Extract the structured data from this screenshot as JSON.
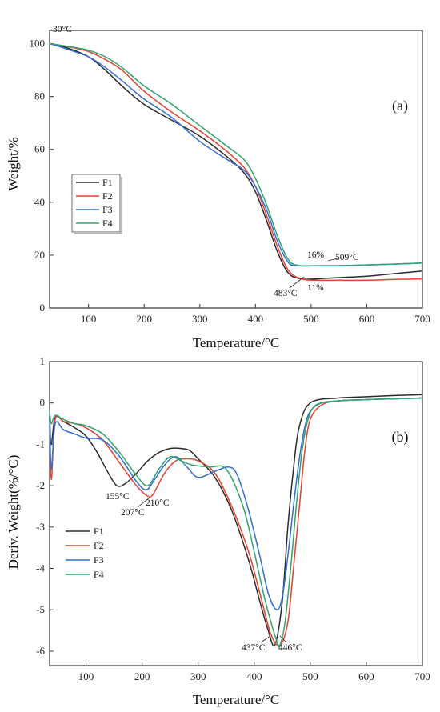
{
  "colors": {
    "F1": "#2b2b2b",
    "F2": "#e8402f",
    "F3": "#2f6fd6",
    "F4": "#2fa56b",
    "axis": "#333333"
  },
  "chart_data": [
    {
      "type": "line",
      "panel_label": "(a)",
      "xlabel": "Temperature/°C",
      "ylabel": "Weight/%",
      "xlim": [
        30,
        700
      ],
      "ylim": [
        0,
        105
      ],
      "xticks": [
        "100",
        "200",
        "300",
        "400",
        "500",
        "600",
        "700"
      ],
      "xtick_values": [
        100,
        200,
        300,
        400,
        500,
        600,
        700
      ],
      "yticks": [
        "0",
        "20",
        "40",
        "60",
        "80",
        "100"
      ],
      "ytick_values": [
        0,
        20,
        40,
        60,
        80,
        100
      ],
      "legend_position": "middle-left",
      "series": [
        {
          "name": "F1",
          "x": [
            30,
            60,
            100,
            130,
            160,
            200,
            250,
            300,
            350,
            380,
            400,
            420,
            440,
            460,
            483,
            510,
            550,
            600,
            650,
            700
          ],
          "y": [
            100,
            98.5,
            95,
            90,
            84,
            77,
            71,
            65,
            57,
            51,
            44,
            33,
            21,
            13,
            11,
            11,
            11.5,
            12,
            13,
            14
          ]
        },
        {
          "name": "F2",
          "x": [
            30,
            60,
            100,
            130,
            160,
            200,
            250,
            300,
            350,
            380,
            400,
            420,
            440,
            460,
            483,
            510,
            550,
            600,
            650,
            700
          ],
          "y": [
            100,
            99,
            97,
            94,
            90,
            82,
            74,
            67,
            59,
            53,
            46,
            35,
            23,
            14,
            11,
            10.5,
            10.5,
            10.5,
            10.8,
            11
          ]
        },
        {
          "name": "F3",
          "x": [
            30,
            60,
            100,
            130,
            160,
            200,
            250,
            300,
            350,
            380,
            400,
            420,
            440,
            460,
            480,
            509,
            550,
            600,
            650,
            700
          ],
          "y": [
            100,
            98,
            95,
            91,
            86,
            79,
            72,
            63,
            56,
            52,
            46,
            37,
            25,
            17,
            16,
            16,
            16,
            16.3,
            16.6,
            17
          ]
        },
        {
          "name": "F4",
          "x": [
            30,
            60,
            100,
            130,
            160,
            200,
            250,
            300,
            350,
            380,
            400,
            420,
            440,
            460,
            480,
            509,
            550,
            600,
            650,
            700
          ],
          "y": [
            100,
            99,
            97.5,
            95,
            91,
            84,
            77,
            69,
            61,
            56,
            49,
            39,
            27,
            18,
            16,
            16,
            16,
            16.3,
            16.6,
            17
          ]
        }
      ],
      "annotations": [
        "30°C",
        "16%",
        "509°C",
        "483°C",
        "11%"
      ]
    },
    {
      "type": "line",
      "panel_label": "(b)",
      "xlabel": "Temperature/°C",
      "ylabel": "Deriv. Weight(%/°C)",
      "xlim": [
        35,
        700
      ],
      "ylim": [
        -6.35,
        1
      ],
      "xticks": [
        "100",
        "200",
        "300",
        "400",
        "500",
        "600",
        "700"
      ],
      "xtick_values": [
        100,
        200,
        300,
        400,
        500,
        600,
        700
      ],
      "yticks": [
        "-6",
        "-5",
        "-4",
        "-3",
        "-2",
        "-1",
        "0",
        "1"
      ],
      "ytick_values": [
        -6,
        -5,
        -4,
        -3,
        -2,
        -1,
        0,
        1
      ],
      "legend_position": "bottom-left",
      "series": [
        {
          "name": "F1",
          "x": [
            35,
            38,
            45,
            60,
            80,
            100,
            120,
            140,
            155,
            170,
            190,
            210,
            230,
            250,
            270,
            285,
            300,
            330,
            360,
            390,
            410,
            425,
            437,
            450,
            460,
            470,
            480,
            500,
            550,
            600,
            650,
            700
          ],
          "y": [
            -0.35,
            -1.0,
            -0.35,
            -0.45,
            -0.6,
            -0.8,
            -1.2,
            -1.7,
            -2.0,
            -1.95,
            -1.7,
            -1.4,
            -1.2,
            -1.1,
            -1.1,
            -1.15,
            -1.35,
            -1.8,
            -2.6,
            -3.8,
            -4.8,
            -5.5,
            -5.85,
            -4.8,
            -3.0,
            -1.6,
            -0.6,
            0.0,
            0.12,
            0.15,
            0.18,
            0.2
          ]
        },
        {
          "name": "F2",
          "x": [
            35,
            38,
            45,
            60,
            80,
            100,
            130,
            160,
            190,
            210,
            220,
            240,
            260,
            280,
            300,
            330,
            360,
            390,
            410,
            430,
            446,
            460,
            470,
            480,
            490,
            500,
            520,
            550,
            600,
            650,
            700
          ],
          "y": [
            -0.35,
            -1.85,
            -0.4,
            -0.45,
            -0.5,
            -0.6,
            -0.9,
            -1.45,
            -2.0,
            -2.25,
            -2.2,
            -1.7,
            -1.4,
            -1.35,
            -1.4,
            -1.7,
            -2.5,
            -3.6,
            -4.6,
            -5.6,
            -5.85,
            -5.3,
            -4.0,
            -2.6,
            -1.2,
            -0.4,
            -0.05,
            0.05,
            0.08,
            0.1,
            0.12
          ]
        },
        {
          "name": "F3",
          "x": [
            35,
            38,
            45,
            60,
            80,
            100,
            130,
            160,
            190,
            207,
            220,
            240,
            260,
            280,
            300,
            330,
            355,
            370,
            390,
            410,
            425,
            440,
            450,
            460,
            470,
            480,
            490,
            500,
            520,
            550,
            600,
            650,
            700
          ],
          "y": [
            -0.3,
            -1.6,
            -0.5,
            -0.65,
            -0.75,
            -0.85,
            -0.9,
            -1.3,
            -1.9,
            -2.1,
            -1.9,
            -1.5,
            -1.3,
            -1.55,
            -1.8,
            -1.65,
            -1.55,
            -1.75,
            -2.6,
            -3.7,
            -4.6,
            -5.0,
            -4.7,
            -3.7,
            -2.5,
            -1.4,
            -0.6,
            -0.2,
            0.0,
            0.05,
            0.08,
            0.1,
            0.12
          ]
        },
        {
          "name": "F4",
          "x": [
            35,
            38,
            45,
            60,
            80,
            100,
            130,
            160,
            190,
            210,
            230,
            250,
            270,
            290,
            320,
            350,
            380,
            400,
            420,
            440,
            446,
            455,
            465,
            475,
            485,
            495,
            510,
            550,
            600,
            650,
            700
          ],
          "y": [
            -0.2,
            -0.5,
            -0.3,
            -0.4,
            -0.5,
            -0.55,
            -0.75,
            -1.2,
            -1.75,
            -2.0,
            -1.6,
            -1.3,
            -1.4,
            -1.5,
            -1.55,
            -1.6,
            -2.5,
            -3.6,
            -4.8,
            -5.75,
            -5.85,
            -5.3,
            -4.0,
            -2.5,
            -1.2,
            -0.45,
            -0.05,
            0.05,
            0.08,
            0.1,
            0.12
          ]
        }
      ],
      "annotations": [
        "155°C",
        "207°C",
        "210°C",
        "437°C",
        "446°C"
      ]
    }
  ]
}
